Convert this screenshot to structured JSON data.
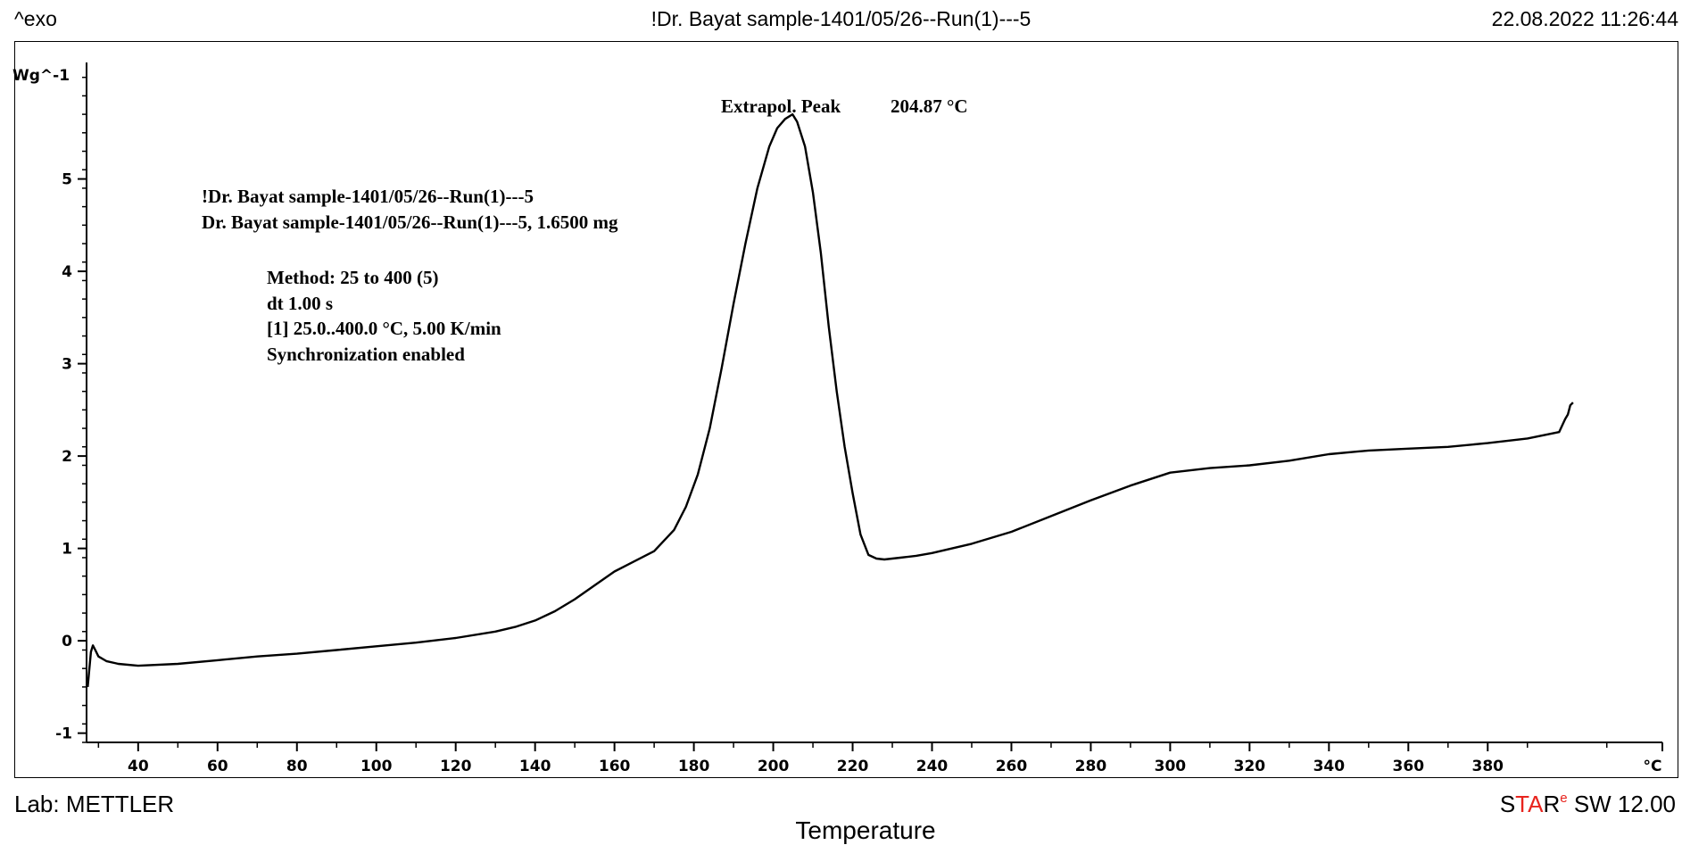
{
  "header": {
    "left": "^exo",
    "center": "!Dr. Bayat sample-1401/05/26--Run(1)---5",
    "right": "22.08.2022 11:26:44"
  },
  "footer": {
    "lab": "Lab: METTLER",
    "software_prefix_S": "S",
    "software_TA": "TA",
    "software_R": "R",
    "software_sup": "e",
    "software_rest": " SW 12.00"
  },
  "annotation": {
    "label": "Extrapol. Peak",
    "value": "204.87 °C"
  },
  "info": {
    "sample_title": "!Dr. Bayat sample-1401/05/26--Run(1)---5",
    "sample_line": "Dr. Bayat sample-1401/05/26--Run(1)---5, 1.6500 mg",
    "method": "Method: 25 to 400 (5)",
    "dt": "dt 1.00 s",
    "segment": "[1] 25.0..400.0 °C, 5.00 K/min",
    "sync": "Synchronization enabled"
  },
  "colors": {
    "line": "#000000",
    "accent_red": "#e8241e"
  },
  "chart_data": {
    "type": "line",
    "xlabel": "Temperature",
    "x_unit": "°C",
    "ylabel": "Wg^-1",
    "xlim": [
      27,
      424
    ],
    "ylim": [
      -1.1,
      6.3
    ],
    "x_ticks": [
      40,
      60,
      80,
      100,
      120,
      140,
      160,
      180,
      200,
      220,
      240,
      260,
      280,
      300,
      320,
      340,
      360,
      380
    ],
    "y_ticks": [
      -1,
      0,
      1,
      2,
      3,
      4,
      5
    ],
    "grid": false,
    "series": [
      {
        "x": [
          27.3,
          27.6,
          28.1,
          28.6,
          29.2,
          30,
          32,
          35,
          40,
          50,
          60,
          70,
          80,
          90,
          100,
          110,
          120,
          130,
          135,
          140,
          145,
          150,
          155,
          160,
          165,
          170,
          175,
          178,
          181,
          184,
          187,
          190,
          193,
          196,
          199,
          201,
          203,
          204.87,
          206,
          208,
          210,
          212,
          214,
          216,
          218,
          220,
          222,
          224,
          226,
          228,
          230,
          232,
          236,
          240,
          250,
          260,
          270,
          280,
          290,
          300,
          310,
          320,
          330,
          340,
          350,
          360,
          370,
          380,
          390,
          398,
          399.5,
          400.2,
          400.8,
          401.5
        ],
        "y": [
          -0.5,
          -0.35,
          -0.12,
          -0.05,
          -0.1,
          -0.17,
          -0.22,
          -0.25,
          -0.27,
          -0.25,
          -0.21,
          -0.17,
          -0.14,
          -0.1,
          -0.06,
          -0.02,
          0.03,
          0.1,
          0.15,
          0.22,
          0.32,
          0.45,
          0.6,
          0.75,
          0.86,
          0.97,
          1.2,
          1.45,
          1.8,
          2.3,
          2.95,
          3.65,
          4.3,
          4.9,
          5.35,
          5.55,
          5.65,
          5.7,
          5.62,
          5.35,
          4.85,
          4.2,
          3.4,
          2.7,
          2.1,
          1.6,
          1.15,
          0.93,
          0.89,
          0.88,
          0.89,
          0.9,
          0.92,
          0.95,
          1.05,
          1.18,
          1.35,
          1.52,
          1.68,
          1.82,
          1.87,
          1.9,
          1.95,
          2.02,
          2.06,
          2.08,
          2.1,
          2.14,
          2.19,
          2.26,
          2.4,
          2.45,
          2.55,
          2.58
        ]
      }
    ]
  }
}
